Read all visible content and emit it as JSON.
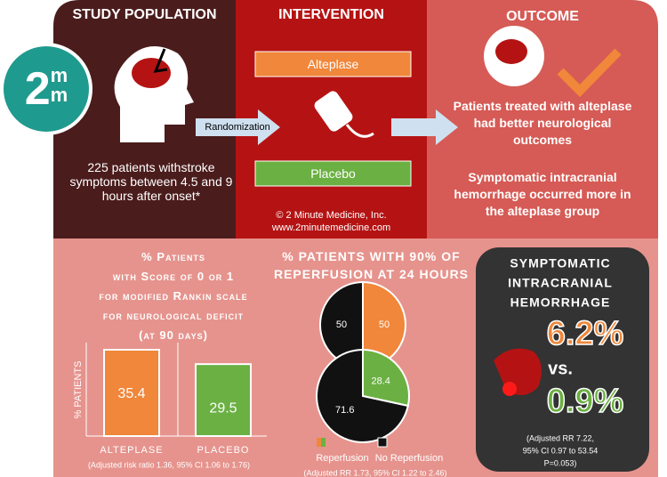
{
  "logo": {
    "digit": "2",
    "letters": [
      "m",
      "m"
    ]
  },
  "study_population": {
    "title": "STUDY POPULATION",
    "text": "225 patients withstroke symptoms between 4.5 and 9 hours after onset*"
  },
  "intervention": {
    "title": "INTERVENTION",
    "arms": [
      "Alteplase",
      "Placebo"
    ],
    "arrow_label": "Randomization",
    "credit": [
      "© 2 Minute Medicine, Inc.",
      "www.2minutemedicine.com"
    ]
  },
  "outcome": {
    "title": "OUTCOME",
    "statements": [
      "Patients treated with alteplase had better neurological outcomes",
      "Symptomatic intracranial hemorrhage occurred more in the alteplase group"
    ]
  },
  "rankin_chart": {
    "type": "bar",
    "title_lines": [
      "% Patients",
      "with Score of 0 or 1",
      "for modified Rankin scale",
      "for neurological deficit",
      "(at 90 days)"
    ],
    "y_label": "% PATIENTS",
    "categories": [
      "ALTEPLASE",
      "PLACEBO"
    ],
    "values": [
      35.4,
      29.5
    ],
    "colors": [
      "#f0873a",
      "#6bb043"
    ],
    "note": "(Adjusted risk ratio 1.36, 95% CI 1.06 to 1.76)"
  },
  "reperfusion_chart": {
    "type": "pie",
    "title": "% PATIENTS WITH 90% OF REPERFUSION AT 24 HOURS",
    "labels": [
      "Reperfusion",
      "No Reperfusion"
    ],
    "pies": [
      {
        "values": [
          50,
          50
        ],
        "colors": [
          "#f0873a",
          "#111111"
        ]
      },
      {
        "values": [
          28.4,
          71.6
        ],
        "colors": [
          "#6bb043",
          "#111111"
        ]
      }
    ],
    "note": "(Adjusted RR 1.73, 95% CI 1.22 to 2.46)"
  },
  "hemorrhage": {
    "title_lines": [
      "SYMPTOMATIC",
      "INTRACRANIAL",
      "HEMORRHAGE"
    ],
    "values": [
      6.2,
      0.9
    ],
    "value_labels": [
      "6.2%",
      "0.9%"
    ],
    "colors": [
      "#f0873a",
      "#6bb043"
    ],
    "vs": "vs.",
    "note_lines": [
      "(Adjusted RR 7.22,",
      "95% CI 0.97 to 53.54",
      "P=0.053)"
    ]
  }
}
